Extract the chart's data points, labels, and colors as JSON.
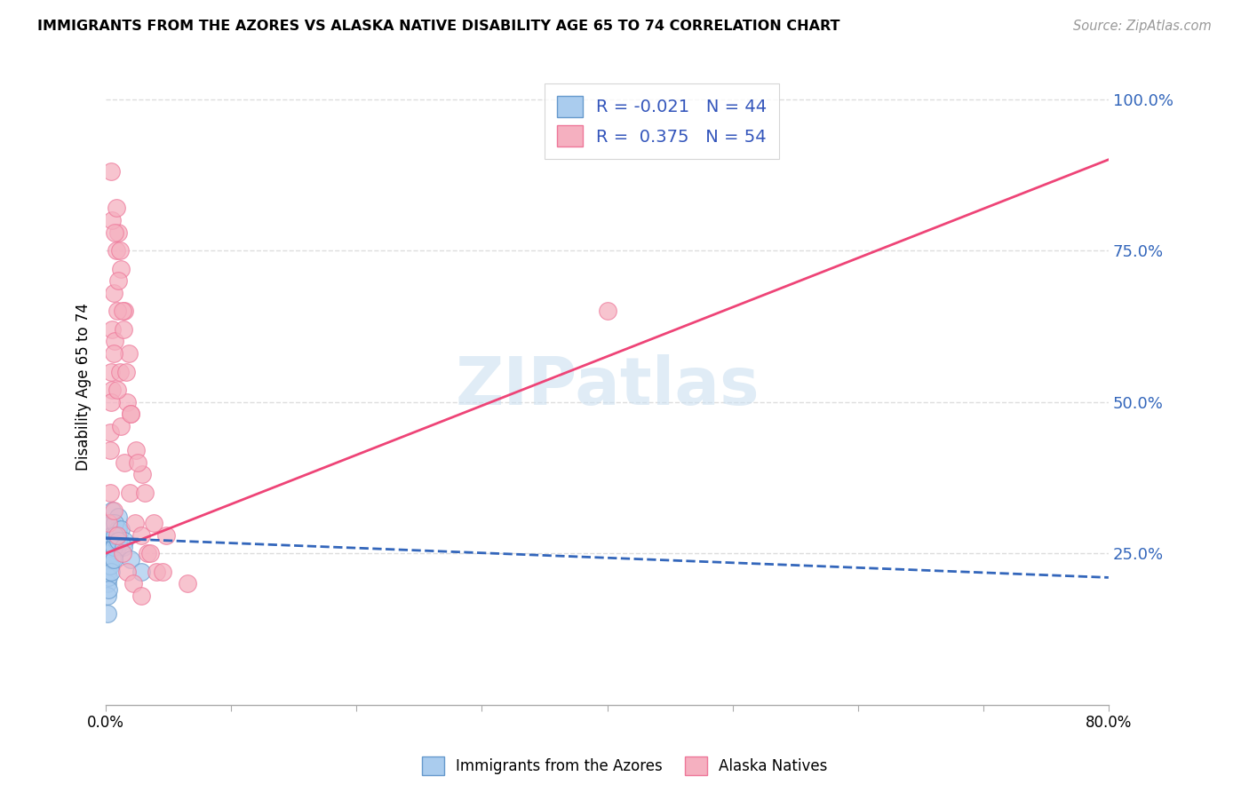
{
  "title": "IMMIGRANTS FROM THE AZORES VS ALASKA NATIVE DISABILITY AGE 65 TO 74 CORRELATION CHART",
  "source": "Source: ZipAtlas.com",
  "ylabel": "Disability Age 65 to 74",
  "y_ticks": [
    25.0,
    50.0,
    75.0,
    100.0
  ],
  "xlim": [
    0.0,
    80.0
  ],
  "ylim": [
    0.0,
    105.0
  ],
  "legend_blue_R": "-0.021",
  "legend_blue_N": "44",
  "legend_pink_R": "0.375",
  "legend_pink_N": "54",
  "blue_color": "#aaccee",
  "pink_color": "#f5b0c0",
  "blue_edge_color": "#6699cc",
  "pink_edge_color": "#ee7799",
  "blue_line_color": "#3366bb",
  "pink_line_color": "#ee4477",
  "watermark_color": "#cce0f0",
  "blue_scatter_x": [
    0.2,
    0.3,
    0.4,
    0.5,
    0.6,
    0.7,
    0.8,
    0.9,
    1.0,
    1.1,
    0.1,
    0.2,
    0.3,
    0.4,
    0.5,
    0.6,
    0.7,
    0.8,
    0.9,
    1.0,
    0.1,
    0.2,
    0.3,
    0.4,
    0.5,
    0.6,
    0.7,
    0.8,
    1.2,
    1.5,
    0.1,
    0.2,
    0.3,
    0.5,
    0.6,
    0.7,
    1.0,
    1.4,
    2.0,
    2.8,
    0.1,
    0.2,
    0.4,
    0.6
  ],
  "blue_scatter_y": [
    28.0,
    30.0,
    26.0,
    32.0,
    28.0,
    25.0,
    27.0,
    29.0,
    31.0,
    27.0,
    22.0,
    24.0,
    26.0,
    28.0,
    30.0,
    27.0,
    25.0,
    28.0,
    26.0,
    29.0,
    20.0,
    23.0,
    27.0,
    25.0,
    28.0,
    26.0,
    30.0,
    27.0,
    29.0,
    27.0,
    18.0,
    21.0,
    23.0,
    24.0,
    26.0,
    28.0,
    27.0,
    26.0,
    24.0,
    22.0,
    15.0,
    19.0,
    22.0,
    24.0
  ],
  "pink_scatter_x": [
    0.2,
    0.3,
    0.4,
    0.5,
    0.6,
    0.8,
    1.0,
    1.2,
    1.5,
    1.8,
    0.3,
    0.5,
    0.7,
    0.9,
    1.1,
    1.4,
    1.7,
    2.0,
    2.4,
    2.9,
    0.4,
    0.6,
    0.9,
    1.2,
    1.5,
    1.9,
    2.3,
    2.8,
    3.3,
    4.0,
    0.5,
    0.7,
    1.0,
    1.3,
    1.6,
    2.0,
    2.5,
    3.1,
    3.8,
    4.8,
    0.3,
    0.6,
    0.9,
    1.3,
    1.7,
    2.2,
    2.8,
    3.5,
    4.5,
    6.5,
    0.4,
    0.8,
    1.1,
    40.0
  ],
  "pink_scatter_y": [
    30.0,
    42.0,
    55.0,
    62.0,
    68.0,
    75.0,
    78.0,
    72.0,
    65.0,
    58.0,
    45.0,
    52.0,
    60.0,
    65.0,
    55.0,
    62.0,
    50.0,
    48.0,
    42.0,
    38.0,
    50.0,
    58.0,
    52.0,
    46.0,
    40.0,
    35.0,
    30.0,
    28.0,
    25.0,
    22.0,
    80.0,
    78.0,
    70.0,
    65.0,
    55.0,
    48.0,
    40.0,
    35.0,
    30.0,
    28.0,
    35.0,
    32.0,
    28.0,
    25.0,
    22.0,
    20.0,
    18.0,
    25.0,
    22.0,
    20.0,
    88.0,
    82.0,
    75.0,
    65.0
  ],
  "pink_trend_x0": 0.0,
  "pink_trend_y0": 25.0,
  "pink_trend_x1": 80.0,
  "pink_trend_y1": 90.0,
  "blue_trend_x0": 0.0,
  "blue_trend_y0": 27.5,
  "blue_trend_x1": 80.0,
  "blue_trend_y1": 21.0,
  "blue_solid_end": 2.5
}
